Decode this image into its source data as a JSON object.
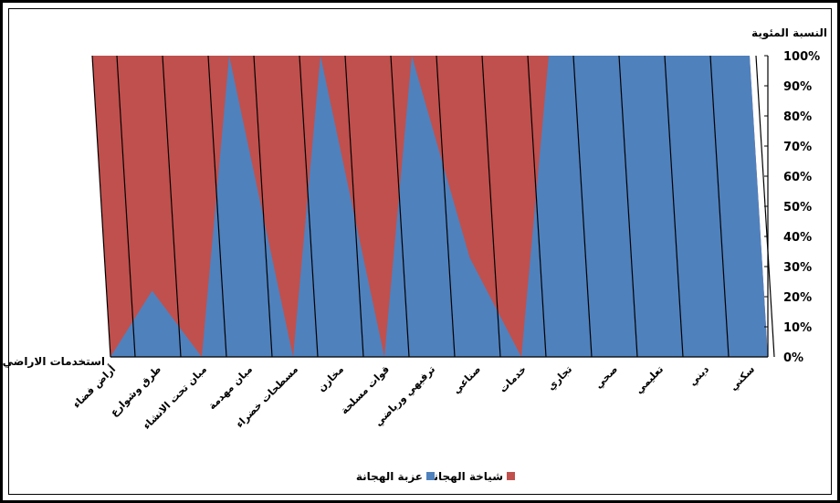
{
  "chart_data": {
    "type": "area",
    "ylabel": "النسبة المئوية",
    "xlabel": "استخدمات الاراضي",
    "categories": [
      "أراض فضاء",
      "طرق وشوارع",
      "مبان تحت الانشاء",
      "مبان مهدمة",
      "مسطحات خضراء",
      "مخازن",
      "قوات مسلحة",
      "ترفيهي ورياضي",
      "صناعي",
      "خدمات",
      "تجاري",
      "صحي",
      "تعليمي",
      "ديني",
      "سكني"
    ],
    "series": [
      {
        "name": "عزبة الهجانة",
        "color": "#4f81bd",
        "values": [
          0,
          22,
          0,
          100,
          0,
          100,
          0,
          100,
          33,
          0,
          100,
          100,
          100,
          100,
          100
        ]
      },
      {
        "name": "شياخة الهجانة",
        "color": "#c0504d",
        "values": [
          100,
          78,
          100,
          0,
          100,
          0,
          100,
          0,
          67,
          100,
          0,
          0,
          0,
          0,
          0
        ]
      }
    ],
    "yticks": [
      "0%",
      "10%",
      "20%",
      "30%",
      "40%",
      "50%",
      "60%",
      "70%",
      "80%",
      "90%",
      "100%"
    ],
    "ylim": [
      0,
      100
    ],
    "legend": "bottom",
    "grid": false
  }
}
